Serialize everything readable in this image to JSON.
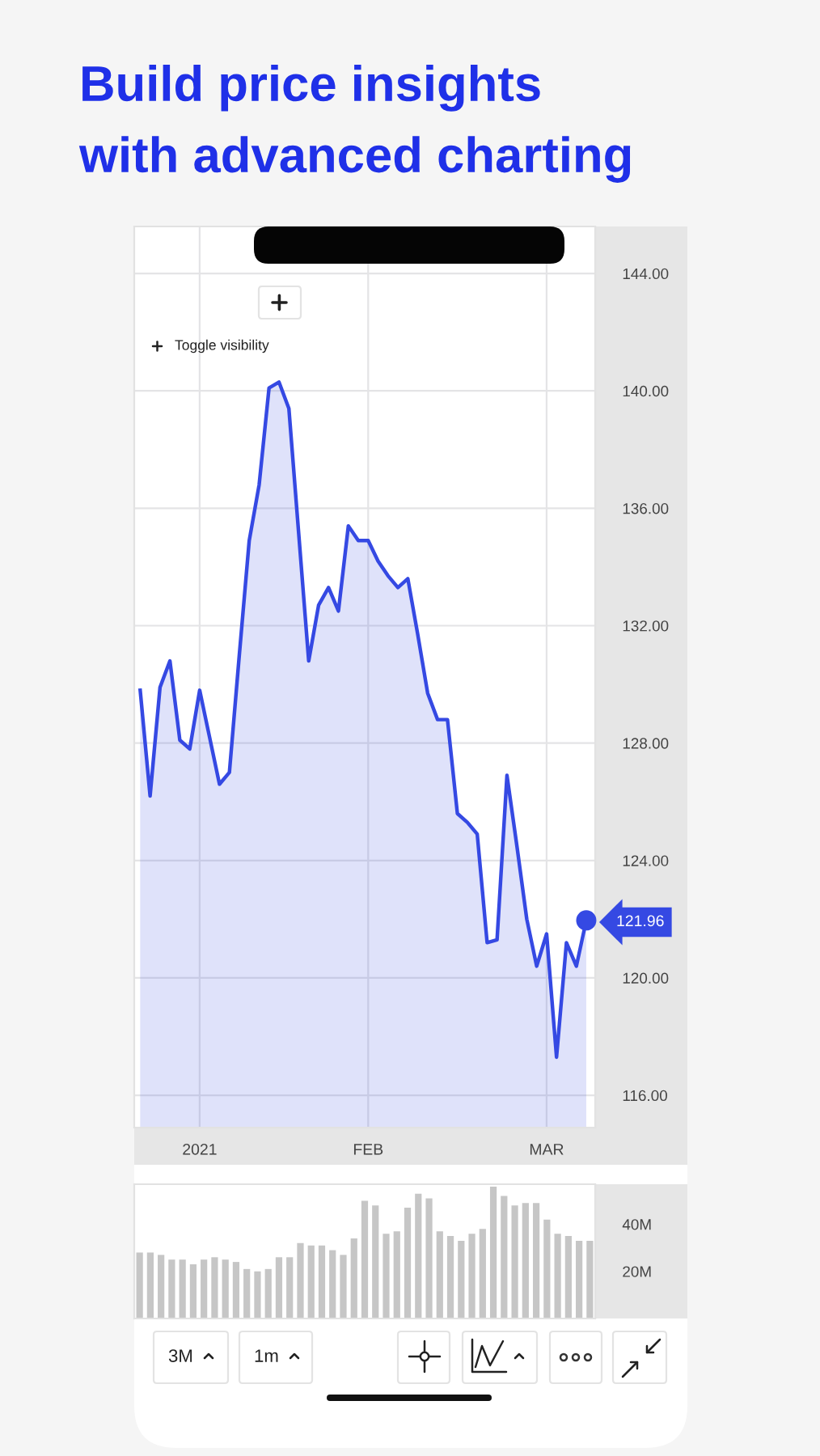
{
  "chart_data": [
    {
      "type": "area",
      "title": "Build price insights\nwith advanced charting",
      "categories": [
        null,
        null,
        null,
        null,
        null,
        null,
        "2021",
        null,
        null,
        null,
        null,
        null,
        null,
        null,
        null,
        null,
        null,
        null,
        null,
        null,
        null,
        null,
        null,
        "FEB",
        null,
        null,
        null,
        null,
        null,
        null,
        null,
        null,
        null,
        null,
        null,
        null,
        null,
        null,
        null,
        null,
        null,
        "MAR",
        null,
        null,
        null,
        null
      ],
      "series": [
        {
          "color": "#3549e3",
          "values": [
            129.8,
            126.2,
            129.9,
            130.8,
            128.1,
            127.8,
            129.8,
            128.2,
            126.6,
            127.0,
            131.0,
            134.9,
            136.8,
            140.1,
            140.3,
            139.4,
            135.1,
            130.8,
            132.7,
            133.3,
            132.5,
            135.4,
            134.9,
            134.9,
            134.2,
            133.7,
            133.3,
            133.6,
            131.7,
            129.7,
            128.8,
            128.8,
            125.6,
            125.3,
            124.9,
            121.2,
            121.3,
            126.9,
            124.5,
            122.0,
            120.4,
            121.5,
            117.3,
            121.2,
            120.4,
            121.96
          ]
        }
      ],
      "ylim": [
        114.9,
        145.6
      ],
      "yticks": [
        {
          "value": 116,
          "label": "116.00"
        },
        {
          "value": 120,
          "label": "120.00"
        },
        {
          "value": 124,
          "label": "124.00"
        },
        {
          "value": 128,
          "label": "128.00"
        },
        {
          "value": 132,
          "label": "132.00"
        },
        {
          "value": 136,
          "label": "136.00"
        },
        {
          "value": 140,
          "label": "140.00"
        },
        {
          "value": 144,
          "label": "144.00"
        }
      ],
      "grid": true,
      "annotations": [
        "121.96",
        "Toggle visibility"
      ]
    },
    {
      "type": "bar",
      "categories": [
        null,
        null,
        null,
        null,
        null,
        null,
        null,
        null,
        null,
        null,
        null,
        null,
        null,
        null,
        null,
        null,
        null,
        null,
        null,
        null,
        null,
        null,
        null,
        null,
        null,
        null,
        null,
        null,
        null,
        null,
        null,
        null,
        null,
        null,
        null,
        null,
        null,
        null,
        null,
        null,
        null,
        null,
        null
      ],
      "series": [
        {
          "color": "#c6c6c6",
          "values": [
            28,
            28,
            27,
            25,
            25,
            23,
            25,
            26,
            25,
            24,
            21,
            20,
            21,
            26,
            26,
            32,
            31,
            31,
            29,
            27,
            34,
            50,
            48,
            36,
            37,
            47,
            53,
            51,
            37,
            35,
            33,
            36,
            38,
            56,
            52,
            48,
            49,
            49,
            42,
            36,
            35,
            33,
            33
          ]
        }
      ],
      "ylim": [
        0,
        57
      ],
      "yticks": [
        {
          "value": 20,
          "label": "20M"
        },
        {
          "value": 40,
          "label": "40M"
        }
      ],
      "tick_labels": "y",
      "annotations": [
        "3M",
        "1m"
      ]
    }
  ]
}
